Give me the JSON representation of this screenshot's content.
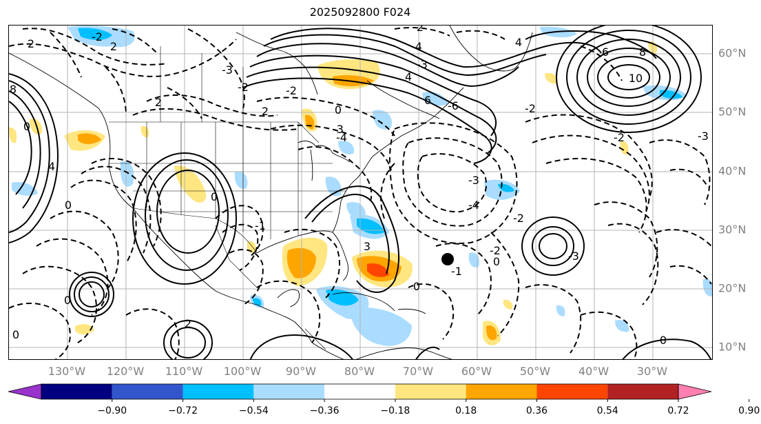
{
  "title": "2025092800 F024",
  "longitude_labels": [
    "130°W",
    "120°W",
    "110°W",
    "100°W",
    "90°W",
    "80°W",
    "70°W",
    "60°W",
    "50°W",
    "40°W",
    "30°W"
  ],
  "latitude_labels": [
    "60°N",
    "50°N",
    "40°N",
    "30°N",
    "20°N",
    "10°N"
  ],
  "contour_labels": [
    "-2",
    "2",
    "2",
    "2",
    "8",
    "0",
    "4",
    "0",
    "-3",
    "-2",
    "2",
    "-2",
    "0",
    "-3",
    "-4",
    "4",
    "2",
    "-4",
    "-3",
    "6",
    "-6",
    "4",
    "6",
    "8",
    "10",
    "-2",
    "-2",
    "-3",
    "-4",
    "0",
    "0",
    "0",
    "-3",
    "3",
    "-1",
    "-3",
    "-2",
    "-1",
    "0",
    "-2",
    "2",
    "0",
    "0"
  ],
  "colorbar": {
    "ticks": [
      "−0.90",
      "−0.72",
      "−0.54",
      "−0.36",
      "−0.18",
      "0.18",
      "0.36",
      "0.54",
      "0.72",
      "0.90"
    ],
    "colors": [
      "#9933cc",
      "#000080",
      "#3355cc",
      "#00bfff",
      "#aadcff",
      "#ffffff",
      "#ffe680",
      "#ffa500",
      "#ff4500",
      "#b22222",
      "#ff80b0"
    ]
  },
  "colors": {
    "grid": "#b3b3b3",
    "tick_label": "#808080",
    "marker": "#000000"
  }
}
